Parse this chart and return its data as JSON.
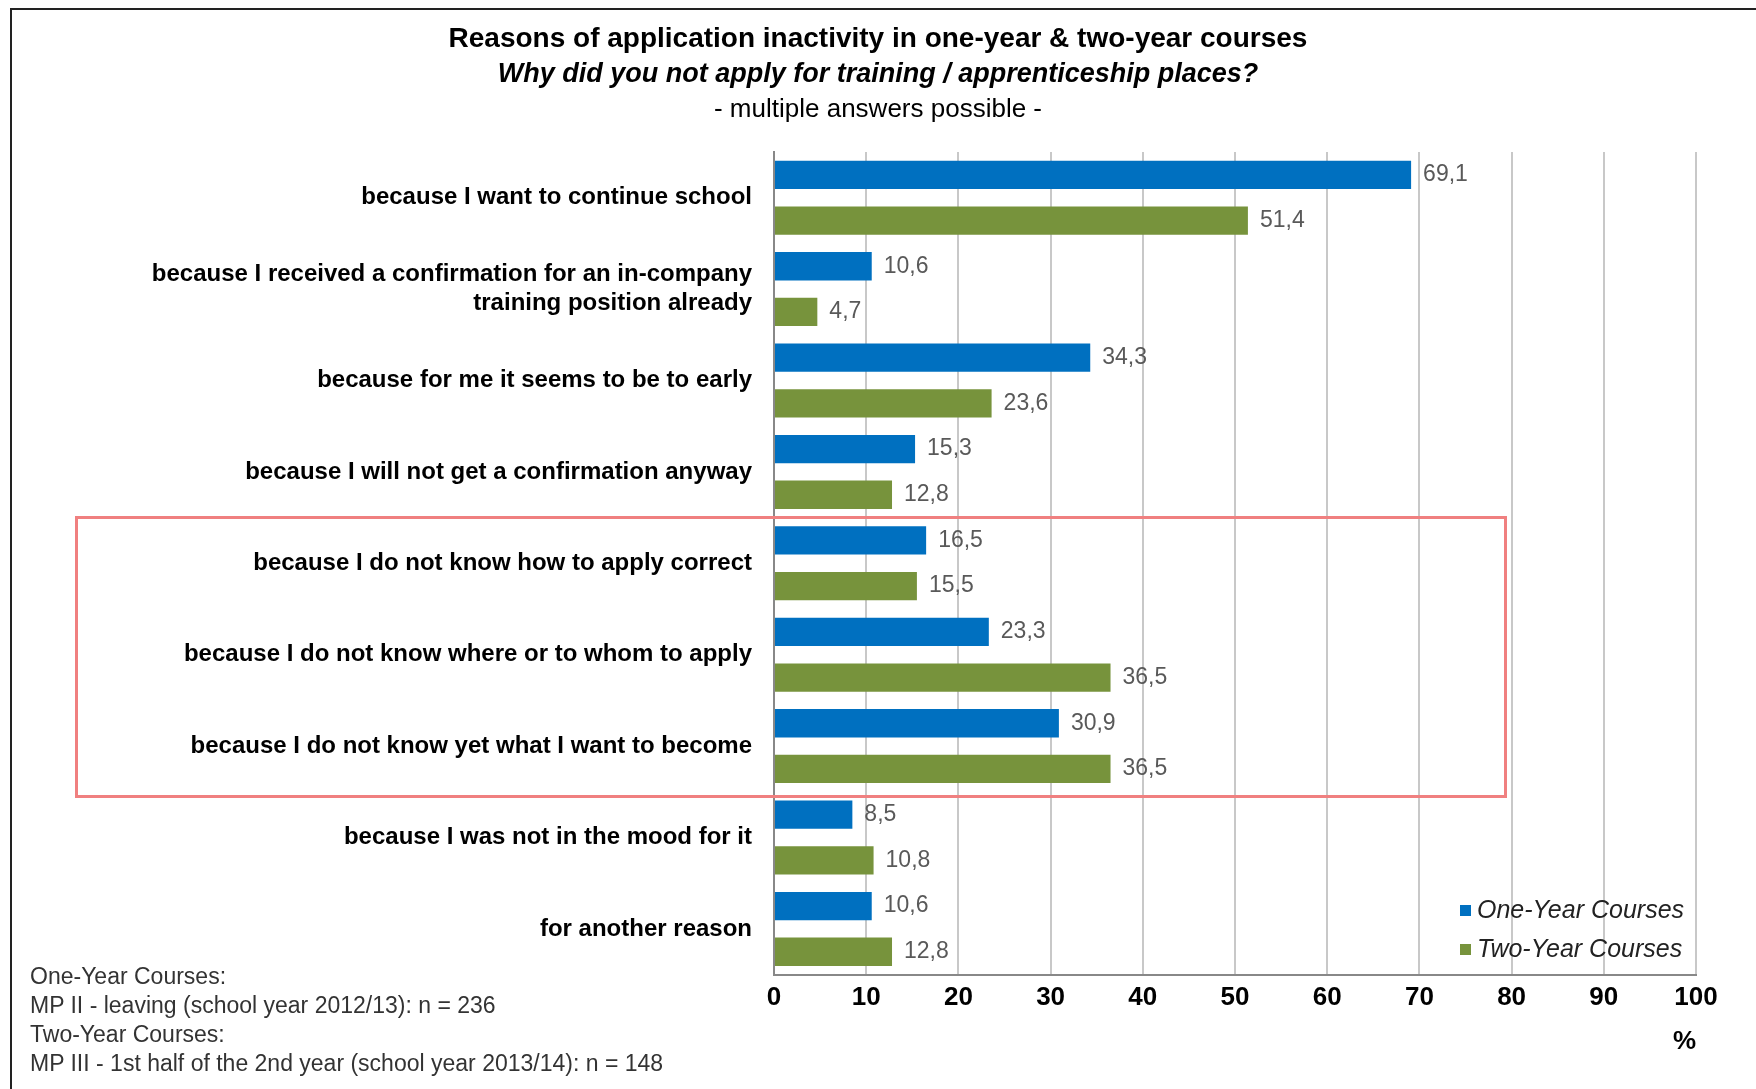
{
  "chart_data": {
    "type": "bar",
    "orientation": "horizontal",
    "title": "Reasons of application inactivity in one-year & two-year courses",
    "subtitle": "Why did you not apply for training / apprenticeship places?",
    "categories": [
      "because I want to continue school",
      "because I received a confirmation for an in-company training position already",
      "because for me it seems to be to early",
      "because I will not get a confirmation anyway",
      "because I do not know how to apply correct",
      "because I do not know where or to whom to apply",
      "because I do not know yet what I want to become",
      "because I was not in the mood for it",
      "for another reason"
    ],
    "series": [
      {
        "name": "One-Year Courses",
        "color": "#0070c0",
        "values": [
          69.1,
          10.6,
          34.3,
          15.3,
          16.5,
          23.3,
          30.9,
          8.5,
          10.6
        ],
        "value_labels": [
          "69,1",
          "10,6",
          "34,3",
          "15,3",
          "16,5",
          "23,3",
          "30,9",
          "8,5",
          "10,6"
        ]
      },
      {
        "name": "Two-Year Courses",
        "color": "#77933c",
        "values": [
          51.4,
          4.7,
          23.6,
          12.8,
          15.5,
          36.5,
          36.5,
          10.8,
          12.8
        ],
        "value_labels": [
          "51,4",
          "4,7",
          "23,6",
          "12,8",
          "15,5",
          "36,5",
          "36,5",
          "10,8",
          "12,8"
        ]
      }
    ],
    "xlim": [
      0,
      100
    ],
    "xticks": [
      0,
      10,
      20,
      30,
      40,
      50,
      60,
      70,
      80,
      90,
      100
    ],
    "xlabel": "%",
    "grid": "x",
    "legend": "bottom right",
    "marker": "square",
    "annotations": [
      "- multiple answers possible -",
      "One-Year Courses:",
      "MP II - leaving (school year 2012/13): n = 236",
      "Two-Year Courses:",
      "MP III - 1st half of the 2nd year (school year 2013/14):  n = 148"
    ]
  }
}
